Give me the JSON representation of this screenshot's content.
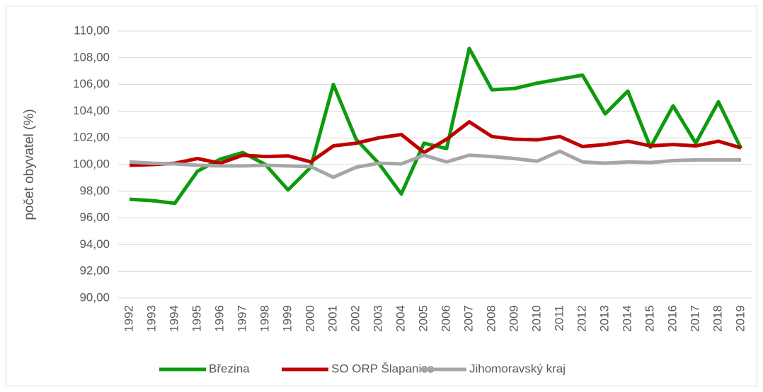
{
  "chart_data": {
    "type": "line",
    "ylabel": "počet obyvatel (%)",
    "categories": [
      "1992",
      "1993",
      "1994",
      "1995",
      "1996",
      "1997",
      "1998",
      "1999",
      "2000",
      "2001",
      "2002",
      "2003",
      "2004",
      "2005",
      "2006",
      "2007",
      "2008",
      "2009",
      "2010",
      "2011",
      "2012",
      "2013",
      "2014",
      "2015",
      "2016",
      "2017",
      "2018",
      "2019"
    ],
    "series": [
      {
        "name": "Březina",
        "color": "#0e9a0e",
        "values": [
          97.4,
          97.3,
          97.1,
          99.5,
          100.4,
          100.9,
          100.0,
          98.1,
          99.8,
          106.0,
          101.9,
          100.1,
          97.8,
          101.6,
          101.2,
          108.7,
          105.6,
          105.7,
          106.1,
          106.4,
          106.7,
          103.8,
          105.5,
          101.3,
          104.4,
          101.6,
          104.7,
          101.2
        ]
      },
      {
        "name": "SO ORP Šlapanice",
        "color": "#c00000",
        "values": [
          99.95,
          100.0,
          100.1,
          100.45,
          100.1,
          100.7,
          100.6,
          100.65,
          100.2,
          101.4,
          101.6,
          102.0,
          102.25,
          100.9,
          101.9,
          103.2,
          102.1,
          101.9,
          101.85,
          102.1,
          101.35,
          101.5,
          101.75,
          101.4,
          101.5,
          101.4,
          101.75,
          101.25
        ]
      },
      {
        "name": "Jihomoravský kraj",
        "color": "#a6a6a6",
        "values": [
          100.2,
          100.1,
          100.05,
          99.95,
          99.9,
          99.9,
          99.95,
          99.9,
          99.85,
          99.05,
          99.8,
          100.1,
          100.05,
          100.7,
          100.2,
          100.7,
          100.6,
          100.45,
          100.25,
          101.0,
          100.2,
          100.1,
          100.2,
          100.15,
          100.3,
          100.35,
          100.35,
          100.35
        ]
      }
    ],
    "ylim": [
      90,
      110
    ],
    "yticks": [
      {
        "value": 90,
        "label": "90,00"
      },
      {
        "value": 92,
        "label": "92,00"
      },
      {
        "value": 94,
        "label": "94,00"
      },
      {
        "value": 96,
        "label": "96,00"
      },
      {
        "value": 98,
        "label": "98,00"
      },
      {
        "value": 100,
        "label": "100,00"
      },
      {
        "value": 102,
        "label": "102,00"
      },
      {
        "value": 104,
        "label": "104,00"
      },
      {
        "value": 106,
        "label": "106,00"
      },
      {
        "value": 108,
        "label": "108,00"
      },
      {
        "value": 110,
        "label": "110,00"
      }
    ],
    "grid": true,
    "legend": "bottom"
  }
}
